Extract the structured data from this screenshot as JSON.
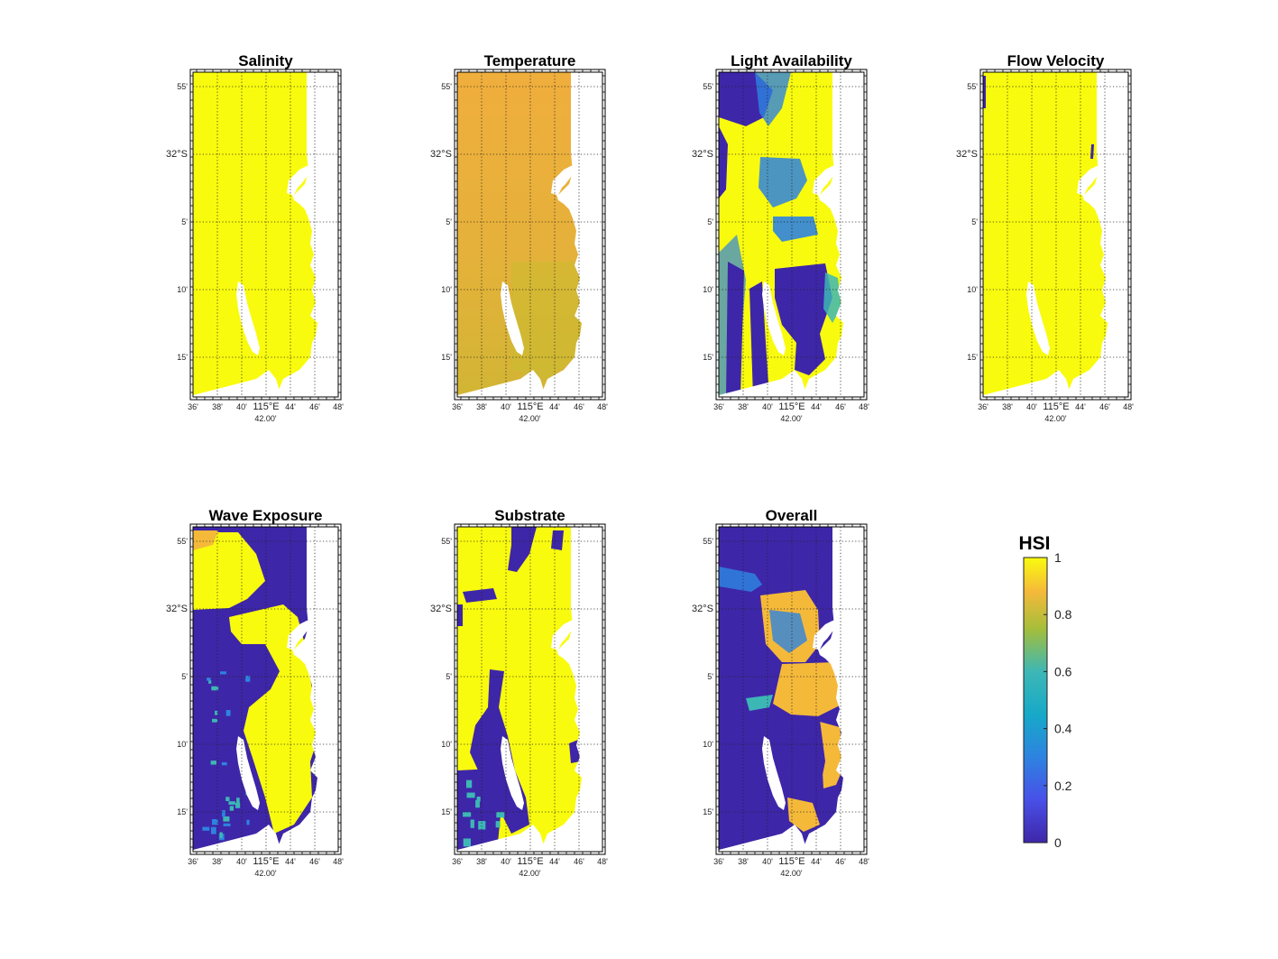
{
  "figure": {
    "panels": [
      {
        "title": "Salinity",
        "scheme": "salinity"
      },
      {
        "title": "Temperature",
        "scheme": "temperature"
      },
      {
        "title": "Light Availability",
        "scheme": "light"
      },
      {
        "title": "Flow Velocity",
        "scheme": "flow"
      },
      {
        "title": "Wave Exposure",
        "scheme": "wave"
      },
      {
        "title": "Substrate",
        "scheme": "substrate"
      },
      {
        "title": "Overall",
        "scheme": "overall"
      }
    ],
    "lat_ticks": [
      "55'",
      "32°S",
      "5'",
      "10'",
      "15'"
    ],
    "lon_ticks": [
      "36'",
      "38'",
      "40'",
      "115°E",
      "44'",
      "46'",
      "48'"
    ],
    "lon_center_label": "42.00'",
    "colorbar": {
      "title": "HSI",
      "ticks": [
        "0",
        "0.2",
        "0.4",
        "0.6",
        "0.8",
        "1"
      ],
      "range": [
        0,
        1
      ]
    },
    "colors": {
      "high": "#f9fb0e",
      "mid_high": "#f5b93a",
      "mid": "#3db7b5",
      "low_mid": "#2e83e0",
      "low": "#3e26a8",
      "temperature": "#e8b23a",
      "temperature_south": "#cbbb30"
    }
  }
}
